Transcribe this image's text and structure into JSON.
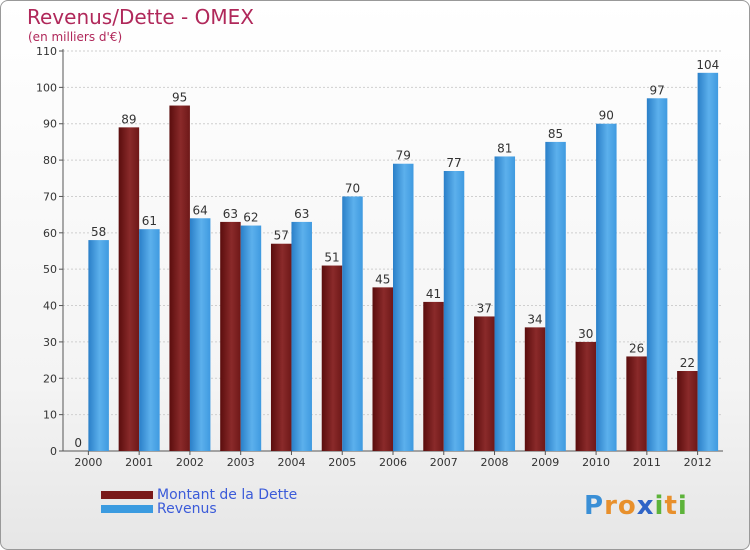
{
  "title": "Revenus/Dette - OMEX",
  "subtitle": "(en milliers d'€)",
  "logo": {
    "text": "Proxiti",
    "letters": [
      "P",
      "r",
      "o",
      "x",
      "i",
      "t",
      "i"
    ],
    "colors": [
      "#3a8fd6",
      "#e8902c",
      "#e8902c",
      "#2f64c7",
      "#5db33a",
      "#e8902c",
      "#5db33a"
    ]
  },
  "colors": {
    "dette": "#7a1a1a",
    "revenus": "#3b9be0"
  },
  "chart_data": {
    "type": "bar",
    "categories": [
      "2000",
      "2001",
      "2002",
      "2003",
      "2004",
      "2005",
      "2006",
      "2007",
      "2008",
      "2009",
      "2010",
      "2011",
      "2012"
    ],
    "series": [
      {
        "name": "Montant de la Dette",
        "values": [
          0,
          89,
          95,
          63,
          57,
          51,
          45,
          41,
          37,
          34,
          30,
          26,
          22
        ],
        "color": "#7a1a1a"
      },
      {
        "name": "Revenus",
        "values": [
          58,
          61,
          64,
          62,
          63,
          70,
          79,
          77,
          81,
          85,
          90,
          97,
          104
        ],
        "color": "#3b9be0"
      }
    ],
    "yticks": [
      0,
      10,
      20,
      30,
      40,
      50,
      60,
      70,
      80,
      90,
      100,
      110
    ],
    "ylim": [
      0,
      110
    ],
    "grid": true,
    "legend": "bottom-left"
  }
}
